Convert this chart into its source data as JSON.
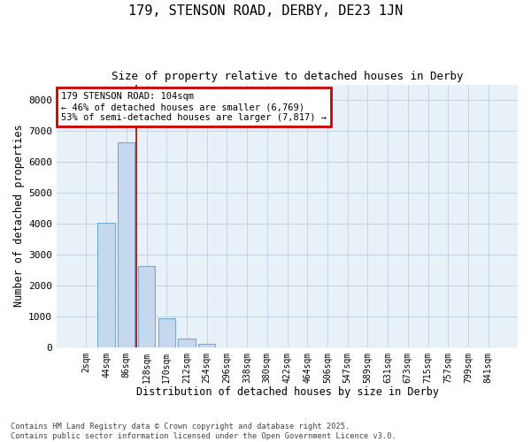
{
  "title1": "179, STENSON ROAD, DERBY, DE23 1JN",
  "title2": "Size of property relative to detached houses in Derby",
  "xlabel": "Distribution of detached houses by size in Derby",
  "ylabel": "Number of detached properties",
  "bar_labels": [
    "2sqm",
    "44sqm",
    "86sqm",
    "128sqm",
    "170sqm",
    "212sqm",
    "254sqm",
    "296sqm",
    "338sqm",
    "380sqm",
    "422sqm",
    "464sqm",
    "506sqm",
    "547sqm",
    "589sqm",
    "631sqm",
    "673sqm",
    "715sqm",
    "757sqm",
    "799sqm",
    "841sqm"
  ],
  "bar_values": [
    0,
    4020,
    6620,
    2620,
    950,
    270,
    100,
    0,
    0,
    0,
    0,
    0,
    0,
    0,
    0,
    0,
    0,
    0,
    0,
    0,
    0
  ],
  "bar_color": "#c5d8ee",
  "bar_edgecolor": "#7aaad0",
  "ylim": [
    0,
    8500
  ],
  "yticks": [
    0,
    1000,
    2000,
    3000,
    4000,
    5000,
    6000,
    7000,
    8000
  ],
  "redline_color": "#aa0000",
  "redline_x": 2.5,
  "annotation_text": "179 STENSON ROAD: 104sqm\n← 46% of detached houses are smaller (6,769)\n53% of semi-detached houses are larger (7,817) →",
  "annotation_box_facecolor": "#ffffff",
  "annotation_box_edgecolor": "#cc0000",
  "grid_color": "#c5d5e5",
  "bg_color": "#e8f0f8",
  "footnote1": "Contains HM Land Registry data © Crown copyright and database right 2025.",
  "footnote2": "Contains public sector information licensed under the Open Government Licence v3.0."
}
